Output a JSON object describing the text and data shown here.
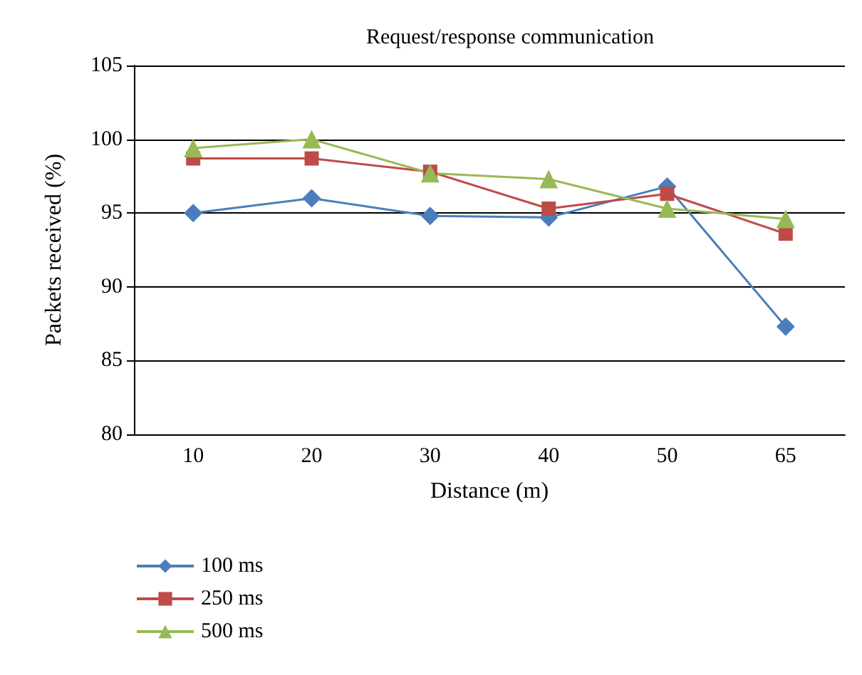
{
  "chart_data": {
    "type": "line",
    "title": "Request/response communication",
    "xlabel": "Distance (m)",
    "ylabel": "Packets received (%)",
    "categories": [
      "10",
      "20",
      "30",
      "40",
      "50",
      "65"
    ],
    "series": [
      {
        "name": "100 ms",
        "color": "#4a7ebb",
        "marker": "diamond",
        "values": [
          95.0,
          96.0,
          94.8,
          94.7,
          96.8,
          87.3
        ]
      },
      {
        "name": "250 ms",
        "color": "#be4b48",
        "marker": "square",
        "values": [
          98.7,
          98.7,
          97.8,
          95.3,
          96.3,
          93.6
        ]
      },
      {
        "name": "500 ms",
        "color": "#98b954",
        "marker": "triangle",
        "values": [
          99.4,
          100.0,
          97.7,
          97.3,
          95.3,
          94.6
        ]
      }
    ],
    "ylim": [
      80,
      105
    ],
    "yticks": [
      80,
      85,
      90,
      95,
      100,
      105
    ],
    "grid": "y",
    "legend": "bottom left"
  }
}
